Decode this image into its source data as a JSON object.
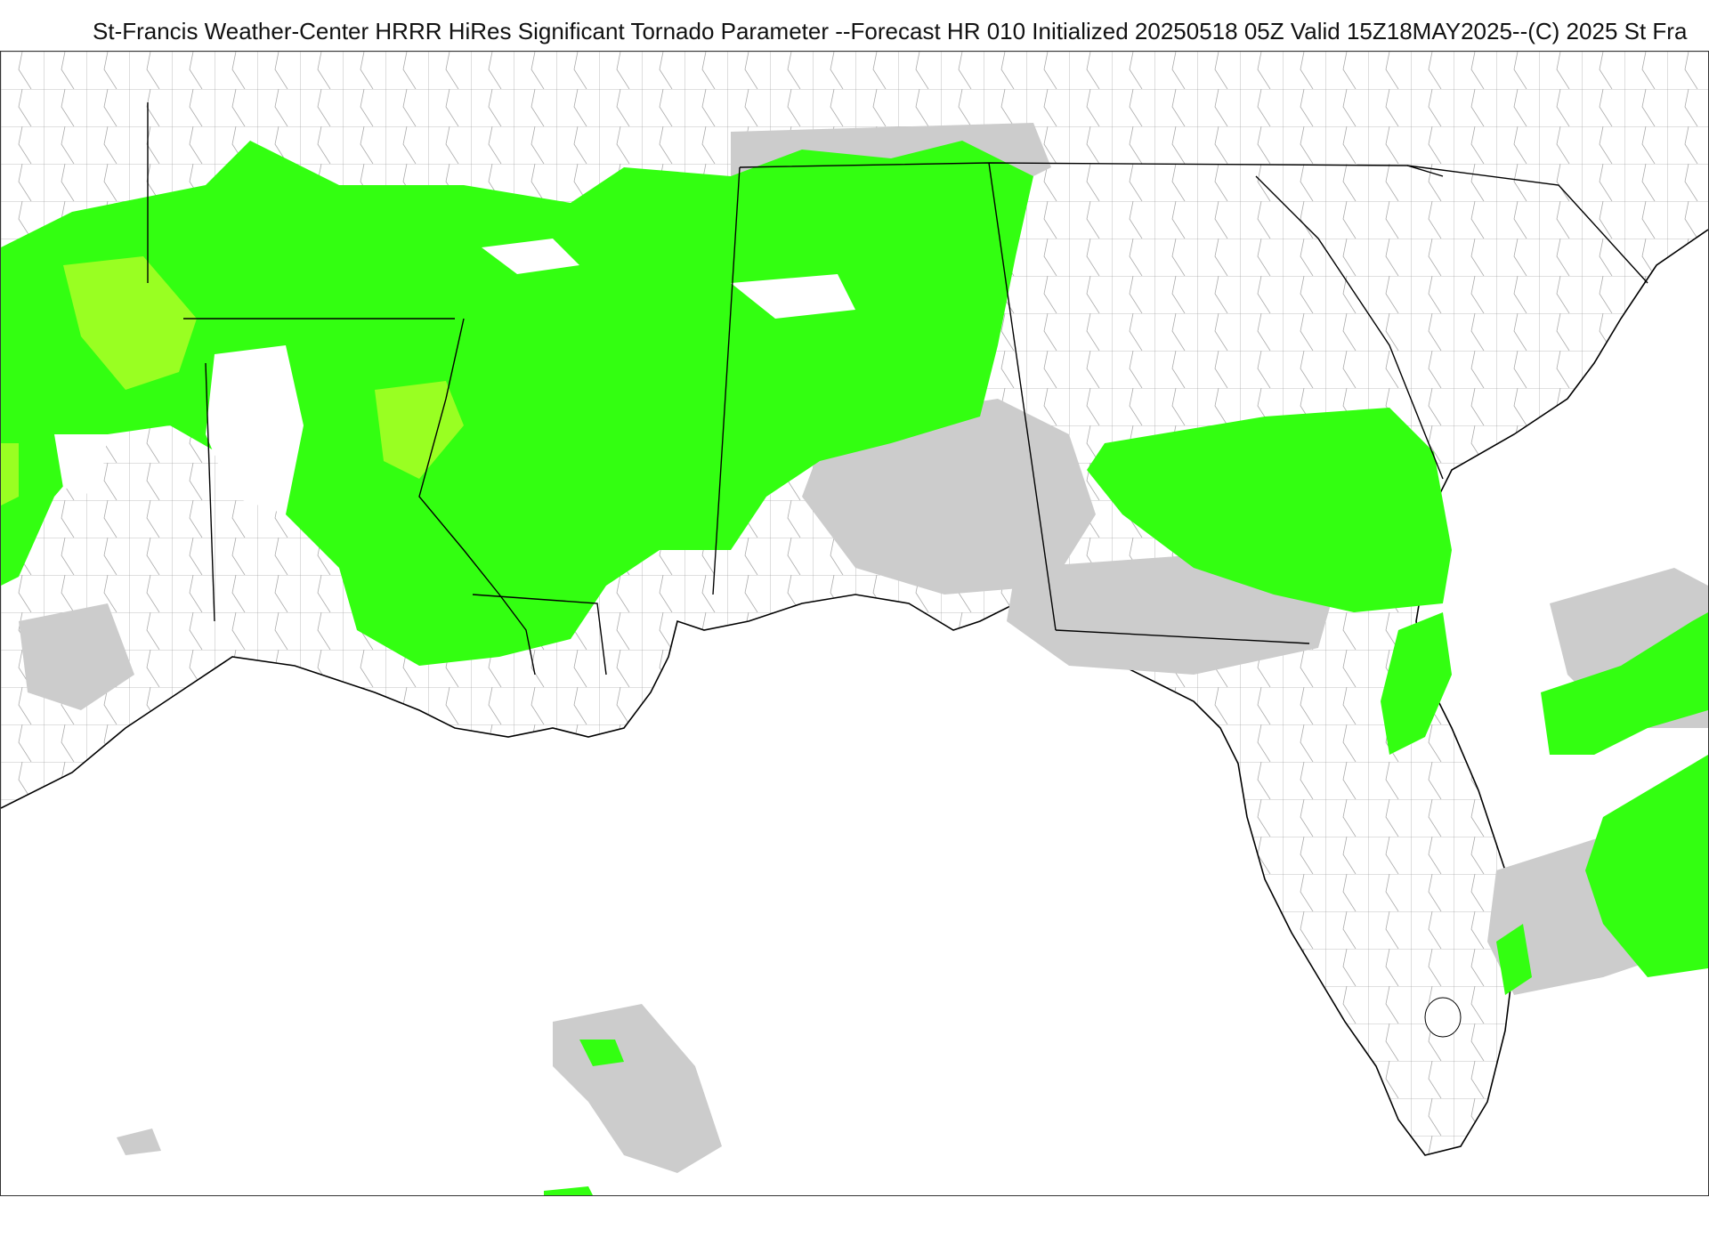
{
  "header": {
    "title": "St-Francis Weather-Center HRRR HiRes Significant Tornado Parameter --Forecast HR 010 Initialized 20250518 05Z Valid 15Z18MAY2025--(C) 2025 St Fra"
  },
  "map": {
    "colors": {
      "background": "#ffffff",
      "light_fill": "#cccccc",
      "green_fill": "#33ff11",
      "yellow_green_fill": "#99ff22",
      "state_border": "#000000",
      "county_border": "#555555"
    }
  }
}
